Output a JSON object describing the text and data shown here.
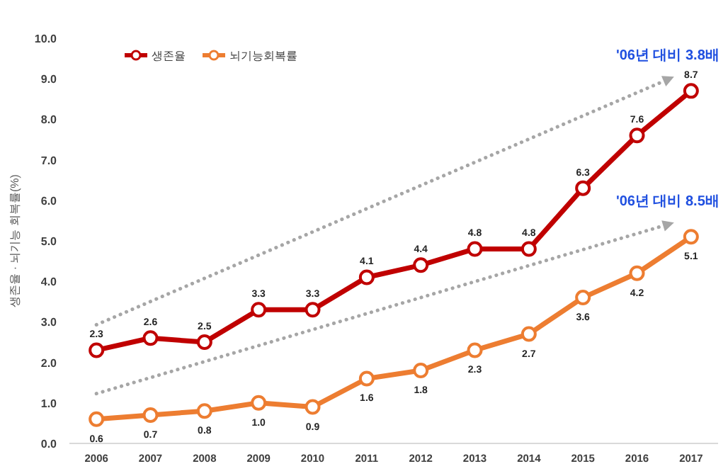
{
  "chart_data": {
    "type": "line",
    "ylabel": "생존율 · 뇌기능 회복률(%)",
    "categories": [
      "2006",
      "2007",
      "2008",
      "2009",
      "2010",
      "2011",
      "2012",
      "2013",
      "2014",
      "2015",
      "2016",
      "2017"
    ],
    "ylim": [
      0,
      10
    ],
    "yticks": [
      {
        "value": 0,
        "label": "0.0"
      },
      {
        "value": 1,
        "label": "1.0"
      },
      {
        "value": 2,
        "label": "2.0"
      },
      {
        "value": 3,
        "label": "3.0"
      },
      {
        "value": 4,
        "label": "4.0"
      },
      {
        "value": 5,
        "label": "5.0"
      },
      {
        "value": 6,
        "label": "6.0"
      },
      {
        "value": 7,
        "label": "7.0"
      },
      {
        "value": 8,
        "label": "8.0"
      },
      {
        "value": 9,
        "label": "9.0"
      },
      {
        "value": 10,
        "label": "10.0"
      }
    ],
    "grid": false,
    "legend": "top left",
    "marker": "circle",
    "line_style": "solid",
    "series": [
      {
        "name": "생존율",
        "color": "#c00000",
        "values": [
          2.3,
          2.6,
          2.5,
          3.3,
          3.3,
          4.1,
          4.4,
          4.8,
          4.8,
          6.3,
          7.6,
          8.7
        ],
        "value_labels": [
          "2.3",
          "2.6",
          "2.5",
          "3.3",
          "3.3",
          "4.1",
          "4.4",
          "4.8",
          "4.8",
          "6.3",
          "7.6",
          "8.7"
        ]
      },
      {
        "name": "뇌기능회복률",
        "color": "#ed7d31",
        "values": [
          0.6,
          0.7,
          0.8,
          1.0,
          0.9,
          1.6,
          1.8,
          2.3,
          2.7,
          3.6,
          4.2,
          5.1
        ],
        "value_labels": [
          "0.6",
          "0.7",
          "0.8",
          "1.0",
          "0.9",
          "1.6",
          "1.8",
          "2.3",
          "2.7",
          "3.6",
          "4.2",
          "5.1"
        ]
      }
    ],
    "annotations": [
      "'06년 대비 3.8배",
      "'06년 대비 8.5배"
    ]
  }
}
